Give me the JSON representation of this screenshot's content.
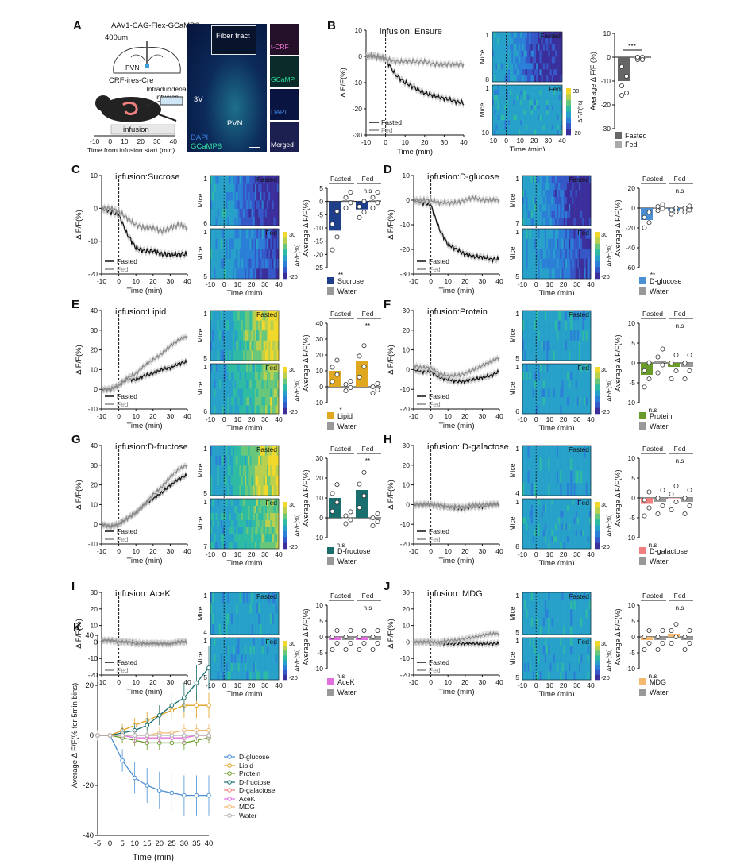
{
  "panels": {
    "A": {
      "letter": "A",
      "virus": "AAV1-CAG-Flex-GCaMP6s",
      "depth": "400um",
      "pvn_small": "PVN",
      "mouse_line": "CRF-ires-Cre",
      "infusion_label": "Intraduodenal infusion",
      "timeline_label": "infusion",
      "timeline_ticks": [
        "-10",
        "0",
        "10",
        "20",
        "30",
        "40"
      ],
      "timeline_axis": "Time from infusion start (min)",
      "micro_fiber": "Fiber tract",
      "micro_3v": "3V",
      "micro_pvn": "PVN",
      "micro_dapi": "DAPI",
      "micro_gcamp": "GCaMP6",
      "inset_crf": "t-CRF",
      "inset_gcamp": "GCaMP",
      "inset_dapi": "DAPI",
      "inset_merged": "Merged"
    },
    "B": {
      "letter": "B",
      "title": "infusion: Ensure",
      "leg1": "Fasted",
      "leg2": "Fed",
      "hm_fasted": "Fasted",
      "hm_fed": "Fed",
      "hm_mice_top": [
        "1",
        "8"
      ],
      "hm_mice_bot": [
        "1",
        "10"
      ],
      "bar_sig": "***",
      "bar_leg1": "Fasted",
      "bar_leg2": "Fed",
      "bar_yticks": [
        "10",
        "0",
        "-10",
        "-20",
        "-30"
      ],
      "ylab": "Δ F/F(%)",
      "bar_ylab": "Average Δ F/F (%)"
    },
    "C": {
      "letter": "C",
      "title": "infusion:Sucrose",
      "leg1": "Fasted",
      "leg2": "Fed",
      "hm_mice_top": [
        "1",
        "6"
      ],
      "hm_mice_bot": [
        "1",
        "5"
      ],
      "sig1": "**",
      "sig2": "n.s",
      "bar_leg1": "Sucrose",
      "bar_leg2": "Water",
      "bar_yticks": [
        "5",
        "0",
        "-5",
        "-10",
        "-15",
        "-20",
        "-25"
      ]
    },
    "D": {
      "letter": "D",
      "title": "infusion:D-glucose",
      "leg1": "Fasted",
      "leg2": "Fed",
      "hm_mice_top": [
        "1",
        "7"
      ],
      "hm_mice_bot": [
        "1",
        "5"
      ],
      "sig1": "**",
      "sig2": "n.s",
      "bar_leg1": "D-glucose",
      "bar_leg2": "Water",
      "bar_yticks": [
        "20",
        "0",
        "-20",
        "-40",
        "-60"
      ]
    },
    "E": {
      "letter": "E",
      "title": "infusion:Lipid",
      "leg1": "Fasted",
      "leg2": "Fed",
      "hm_mice_top": [
        "1",
        "5"
      ],
      "hm_mice_bot": [
        "1",
        "6"
      ],
      "sig1": "*",
      "sig2": "**",
      "bar_leg1": "Lipid",
      "bar_leg2": "Water",
      "bar_yticks": [
        "40",
        "30",
        "20",
        "10",
        "0",
        "-10"
      ]
    },
    "F": {
      "letter": "F",
      "title": "infusion:Protein",
      "leg1": "Fasted",
      "leg2": "Fed",
      "hm_mice_top": [
        "1",
        "5"
      ],
      "hm_mice_bot": [
        "1",
        "6"
      ],
      "sig1": "n.s",
      "sig2": "n.s",
      "bar_leg1": "Protein",
      "bar_leg2": "Water",
      "bar_yticks": [
        "10",
        "5",
        "0",
        "-5",
        "-10"
      ]
    },
    "G": {
      "letter": "G",
      "title": "infusion:D-fructose",
      "leg1": "Fasted",
      "leg2": "Fed",
      "hm_mice_top": [
        "1",
        "5"
      ],
      "hm_mice_bot": [
        "1",
        "7"
      ],
      "sig1": "n.s",
      "sig2": "**",
      "bar_leg1": "D-fructose",
      "bar_leg2": "Water",
      "bar_yticks": [
        "30",
        "20",
        "10",
        "0",
        "-10"
      ]
    },
    "H": {
      "letter": "H",
      "title": "infusion: D-galactose",
      "leg1": "Fasted",
      "leg2": "Fed",
      "hm_mice_top": [
        "1",
        "4"
      ],
      "hm_mice_bot": [
        "1",
        "8"
      ],
      "sig1": "n.s",
      "sig2": "n.s",
      "bar_leg1": "D-galactose",
      "bar_leg2": "Water",
      "bar_yticks": [
        "10",
        "5",
        "0",
        "-5",
        "-10"
      ]
    },
    "I": {
      "letter": "I",
      "title": "infusion: AceK",
      "leg1": "Fasted",
      "leg2": "Fed",
      "hm_mice_top": [
        "1",
        "4"
      ],
      "hm_mice_bot": [
        "1",
        "5"
      ],
      "sig1": "n.s",
      "sig2": "n.s",
      "bar_leg1": "AceK",
      "bar_leg2": "Water",
      "bar_yticks": [
        "10",
        "5",
        "0",
        "-5",
        "-10"
      ]
    },
    "J": {
      "letter": "J",
      "title": "infusion: MDG",
      "leg1": "Fasted",
      "leg2": "Fed",
      "hm_mice_top": [
        "1",
        "5"
      ],
      "hm_mice_bot": [
        "1",
        "5"
      ],
      "sig1": "n.s",
      "sig2": "n.s",
      "bar_leg1": "MDG",
      "bar_leg2": "Water",
      "bar_yticks": [
        "10",
        "5",
        "0",
        "-5",
        "-10"
      ]
    },
    "K": {
      "letter": "K",
      "ylab": "Average Δ F/F(% for 5min bins)",
      "xlab": "Time (min)"
    }
  },
  "common": {
    "hm_fasted": "Fasted",
    "hm_fed": "Fed",
    "mice": "Mice",
    "time_min": "Time (min)",
    "dff": "Δ F/F(%)",
    "avg_dff": "Average Δ F/F(%)",
    "bar_fasted": "Fasted",
    "bar_fed": "Fed",
    "colorbar_label": "ΔF/F(%)",
    "cb_max": "30",
    "cb_min": "-20",
    "xticks": [
      "-10",
      "0",
      "10",
      "20",
      "30",
      "40"
    ],
    "ylim_B": [
      "10",
      "0",
      "-10",
      "-20",
      "-30"
    ]
  },
  "chart_data": [
    {
      "type": "line",
      "title": "infusion: Ensure",
      "xlabel": "Time (min)",
      "ylabel": "Δ F/F(%)",
      "xlim": [
        -10,
        40
      ],
      "ylim": [
        -30,
        10
      ],
      "x": [
        -10,
        -5,
        0,
        5,
        10,
        15,
        20,
        25,
        30,
        35,
        40
      ],
      "series": [
        {
          "name": "Fasted",
          "values": [
            0,
            0,
            -1,
            -7,
            -10,
            -12,
            -14,
            -15,
            -16,
            -17,
            -18
          ]
        },
        {
          "name": "Fed",
          "values": [
            0,
            0,
            -1,
            -2,
            -2,
            -2,
            -2,
            -3,
            -3,
            -3,
            -3
          ]
        }
      ]
    },
    {
      "type": "bar",
      "categories": [
        "Fasted",
        "Fed"
      ],
      "values": [
        -10,
        -0.5
      ],
      "ylabel": "Average Δ F/F (%)",
      "ylim": [
        -30,
        10
      ]
    },
    {
      "type": "line",
      "title": "infusion:Sucrose",
      "xlabel": "Time (min)",
      "ylabel": "Δ F/F(%)",
      "xlim": [
        -10,
        40
      ],
      "ylim": [
        -20,
        10
      ],
      "x": [
        -10,
        -5,
        0,
        5,
        10,
        15,
        20,
        25,
        30,
        35,
        40
      ],
      "series": [
        {
          "name": "Fasted",
          "values": [
            0,
            -1,
            -2,
            -8,
            -12,
            -13,
            -13,
            -14,
            -14,
            -14,
            -14
          ]
        },
        {
          "name": "Fed",
          "values": [
            0,
            0,
            -1,
            -3,
            -5,
            -6,
            -6,
            -7,
            -6,
            -5,
            -6
          ]
        }
      ]
    },
    {
      "type": "line",
      "title": "infusion:D-glucose",
      "xlabel": "Time (min)",
      "ylabel": "Δ F/F(%)",
      "xlim": [
        -10,
        40
      ],
      "ylim": [
        -30,
        10
      ],
      "x": [
        -10,
        -5,
        0,
        5,
        10,
        15,
        20,
        25,
        30,
        35,
        40
      ],
      "series": [
        {
          "name": "Fasted",
          "values": [
            0,
            -1,
            -2,
            -12,
            -18,
            -20,
            -22,
            -23,
            -23,
            -24,
            -24
          ]
        },
        {
          "name": "Fed",
          "values": [
            0,
            0,
            0,
            -1,
            -1,
            -1,
            0,
            1,
            0,
            0,
            0
          ]
        }
      ]
    },
    {
      "type": "line",
      "title": "infusion:Lipid",
      "xlabel": "Time (min)",
      "ylabel": "Δ F/F(%)",
      "xlim": [
        -10,
        40
      ],
      "ylim": [
        -10,
        40
      ],
      "x": [
        -10,
        -5,
        0,
        5,
        10,
        15,
        20,
        25,
        30,
        35,
        40
      ],
      "series": [
        {
          "name": "Fasted",
          "values": [
            0,
            0,
            2,
            5,
            5,
            7,
            8,
            10,
            11,
            13,
            14
          ]
        },
        {
          "name": "Fed",
          "values": [
            0,
            0,
            2,
            6,
            8,
            12,
            15,
            18,
            22,
            25,
            27
          ]
        }
      ]
    },
    {
      "type": "line",
      "title": "infusion:Protein",
      "xlabel": "Time (min)",
      "ylabel": "Δ F/F(%)",
      "xlim": [
        -10,
        40
      ],
      "ylim": [
        -20,
        30
      ],
      "x": [
        -10,
        -5,
        0,
        5,
        10,
        15,
        20,
        25,
        30,
        35,
        40
      ],
      "series": [
        {
          "name": "Fasted",
          "values": [
            0,
            -1,
            -1,
            -4,
            -5,
            -6,
            -6,
            -5,
            -4,
            -3,
            -1
          ]
        },
        {
          "name": "Fed",
          "values": [
            2,
            1,
            1,
            -2,
            -3,
            -3,
            -2,
            0,
            2,
            4,
            6
          ]
        }
      ]
    },
    {
      "type": "line",
      "title": "infusion:D-fructose",
      "xlabel": "Time (min)",
      "ylabel": "Δ F/F(%)",
      "xlim": [
        -10,
        40
      ],
      "ylim": [
        -10,
        40
      ],
      "x": [
        -10,
        -5,
        0,
        5,
        10,
        15,
        20,
        25,
        30,
        35,
        40
      ],
      "series": [
        {
          "name": "Fasted",
          "values": [
            0,
            -1,
            0,
            3,
            6,
            10,
            13,
            16,
            20,
            23,
            25
          ]
        },
        {
          "name": "Fed",
          "values": [
            0,
            -1,
            0,
            3,
            6,
            10,
            15,
            19,
            24,
            28,
            30
          ]
        }
      ]
    },
    {
      "type": "line",
      "title": "infusion: D-galactose",
      "xlabel": "Time (min)",
      "ylabel": "Δ F/F(%)",
      "xlim": [
        -10,
        40
      ],
      "ylim": [
        -20,
        30
      ],
      "x": [
        -10,
        -5,
        0,
        5,
        10,
        15,
        20,
        25,
        30,
        35,
        40
      ],
      "series": [
        {
          "name": "Fasted",
          "values": [
            0,
            0,
            0,
            -1,
            -1,
            -2,
            -2,
            -1,
            -1,
            0,
            0
          ]
        },
        {
          "name": "Fed",
          "values": [
            0,
            0,
            0,
            0,
            -1,
            -1,
            -1,
            0,
            0,
            0,
            0
          ]
        }
      ]
    },
    {
      "type": "line",
      "title": "infusion: AceK",
      "xlabel": "Time (min)",
      "ylabel": "Δ F/F(%)",
      "xlim": [
        -10,
        40
      ],
      "ylim": [
        -20,
        30
      ],
      "x": [
        -10,
        -5,
        0,
        5,
        10,
        15,
        20,
        25,
        30,
        35,
        40
      ],
      "series": [
        {
          "name": "Fasted",
          "values": [
            1,
            1,
            0,
            0,
            -1,
            -1,
            -1,
            -1,
            -1,
            0,
            0
          ]
        },
        {
          "name": "Fed",
          "values": [
            1,
            1,
            0,
            0,
            0,
            -1,
            -1,
            -1,
            -1,
            0,
            0
          ]
        }
      ]
    },
    {
      "type": "line",
      "title": "infusion: MDG",
      "xlabel": "Time (min)",
      "ylabel": "Δ F/F(%)",
      "xlim": [
        -10,
        40
      ],
      "ylim": [
        -20,
        30
      ],
      "x": [
        -10,
        -5,
        0,
        5,
        10,
        15,
        20,
        25,
        30,
        35,
        40
      ],
      "series": [
        {
          "name": "Fasted",
          "values": [
            0,
            0,
            0,
            -1,
            -1,
            -1,
            -1,
            -1,
            -1,
            -1,
            -1
          ]
        },
        {
          "name": "Fed",
          "values": [
            0,
            0,
            0,
            0,
            1,
            1,
            2,
            3,
            4,
            5,
            5
          ]
        }
      ]
    },
    {
      "type": "line",
      "xlabel": "Time (min)",
      "ylabel": "Average Δ F/F(% for 5min bins)",
      "xlim": [
        -5,
        40
      ],
      "ylim": [
        -40,
        40
      ],
      "x": [
        -5,
        0,
        5,
        10,
        15,
        20,
        25,
        30,
        35,
        40
      ],
      "series": [
        {
          "name": "D-glucose",
          "color": "#4a8fd4",
          "values": [
            0,
            0,
            -10,
            -17,
            -20,
            -22,
            -23,
            -24,
            -24,
            -24
          ]
        },
        {
          "name": "Lipid",
          "color": "#e0a020",
          "values": [
            0,
            0,
            2,
            4,
            6,
            8,
            10,
            12,
            12,
            12
          ]
        },
        {
          "name": "Protein",
          "color": "#6a9a2a",
          "values": [
            0,
            0,
            -1,
            -2,
            -3,
            -3,
            -3,
            -3,
            -2,
            -1
          ]
        },
        {
          "name": "D-fructose",
          "color": "#1a6e6e",
          "values": [
            0,
            0,
            1,
            2,
            4,
            8,
            12,
            15,
            21,
            27
          ]
        },
        {
          "name": "D-galactose",
          "color": "#f08080",
          "values": [
            0,
            0,
            0,
            -1,
            -1,
            -1,
            -1,
            -1,
            0,
            0
          ]
        },
        {
          "name": "AceK",
          "color": "#e070e0",
          "values": [
            0,
            0,
            0,
            -1,
            -1,
            -1,
            -1,
            -1,
            0,
            0
          ]
        },
        {
          "name": "MDG",
          "color": "#f4b870",
          "values": [
            0,
            0,
            0,
            0,
            0,
            1,
            1,
            2,
            2,
            2
          ]
        },
        {
          "name": "Water",
          "color": "#b0b0b0",
          "values": [
            0,
            0,
            0,
            0,
            0,
            0,
            0,
            0,
            0,
            0
          ]
        }
      ]
    }
  ]
}
